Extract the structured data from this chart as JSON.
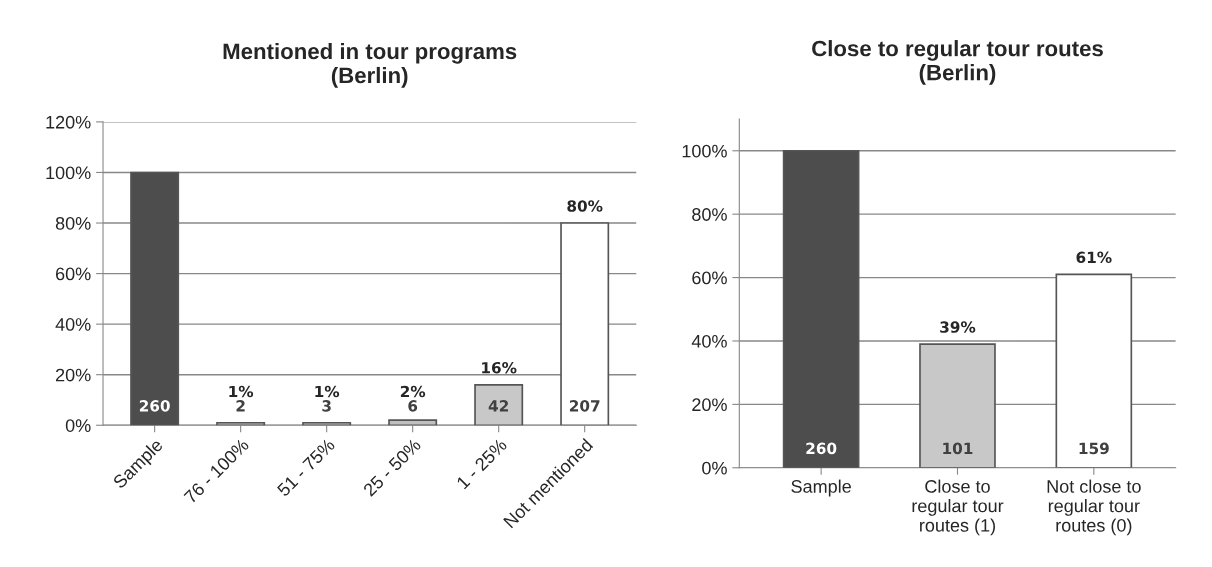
{
  "chart_data": [
    {
      "type": "bar",
      "title": "Mentioned in tour programs\n(Berlin)",
      "categories": [
        "Sample",
        "76 - 100%",
        "51 - 75%",
        "25 - 50%",
        "1 - 25%",
        "Not mentioned"
      ],
      "values": [
        100,
        1,
        1,
        2,
        16,
        80
      ],
      "colors": [
        "#4d4d4d",
        "#bfbfbf",
        "#bfbfbf",
        "#bfbfbf",
        "#c8c8c8",
        "#ffffff"
      ],
      "value_labels": [
        null,
        "1%",
        "1%",
        "2%",
        "16%",
        "80%"
      ],
      "annotations": [
        "260",
        "2",
        "3",
        "6",
        "42",
        "207"
      ],
      "ylim": [
        0,
        120
      ],
      "yticks": [
        {
          "value": 0,
          "label": "0%"
        },
        {
          "value": 20,
          "label": "20%"
        },
        {
          "value": 40,
          "label": "40%"
        },
        {
          "value": 60,
          "label": "60%"
        },
        {
          "value": 80,
          "label": "80%"
        },
        {
          "value": 100,
          "label": "100%"
        },
        {
          "value": 120,
          "label": "120%"
        }
      ],
      "grid": "y",
      "legend": false
    },
    {
      "type": "bar",
      "title": "Close to regular tour routes\n(Berlin)",
      "categories": [
        "Sample",
        "Close to regular tour routes (1)",
        "Not close to regular tour routes (0)"
      ],
      "values": [
        100,
        39,
        61
      ],
      "colors": [
        "#4d4d4d",
        "#c8c8c8",
        "#ffffff"
      ],
      "value_labels": [
        null,
        "39%",
        "61%"
      ],
      "annotations": [
        "260",
        "101",
        "159"
      ],
      "ylim": [
        0,
        110
      ],
      "yticks": [
        {
          "value": 0,
          "label": "0%"
        },
        {
          "value": 20,
          "label": "20%"
        },
        {
          "value": 40,
          "label": "40%"
        },
        {
          "value": 60,
          "label": "60%"
        },
        {
          "value": 80,
          "label": "80%"
        },
        {
          "value": 100,
          "label": "100%"
        }
      ],
      "grid": "y",
      "legend": false
    }
  ]
}
